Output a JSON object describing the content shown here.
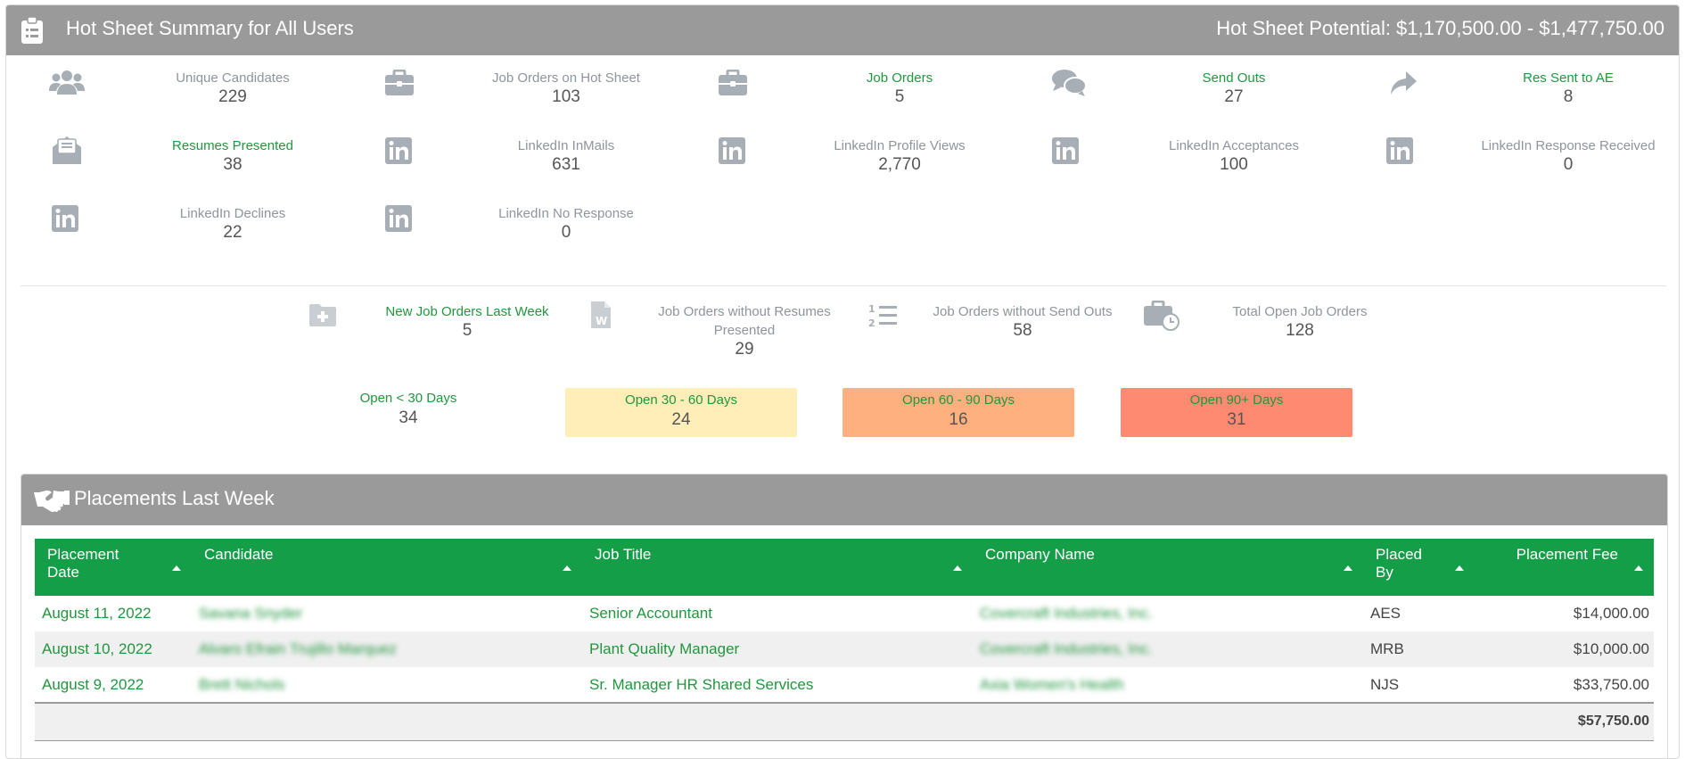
{
  "header": {
    "title": "Hot Sheet Summary for All Users",
    "potential": "Hot Sheet Potential: $1,170,500.00 - $1,477,750.00"
  },
  "stats": [
    {
      "label": "Unique Candidates",
      "value": "229",
      "icon": "users-icon"
    },
    {
      "label": "Job Orders on Hot Sheet",
      "value": "103",
      "icon": "briefcase-icon"
    },
    {
      "label": "Job Orders",
      "value": "5",
      "icon": "briefcase-icon"
    },
    {
      "label": "Send Outs",
      "value": "27",
      "icon": "comments-icon"
    },
    {
      "label": "Res Sent to AE",
      "value": "8",
      "icon": "share-arrow-icon"
    },
    {
      "label": "Resumes Presented",
      "value": "38",
      "icon": "envelope-open-icon"
    },
    {
      "label": "LinkedIn InMails",
      "value": "631",
      "icon": "linkedin-icon"
    },
    {
      "label": "LinkedIn Profile Views",
      "value": "2,770",
      "icon": "linkedin-icon"
    },
    {
      "label": "LinkedIn Acceptances",
      "value": "100",
      "icon": "linkedin-icon"
    },
    {
      "label": "LinkedIn Response Received",
      "value": "0",
      "icon": "linkedin-icon"
    },
    {
      "label": "LinkedIn Declines",
      "value": "22",
      "icon": "linkedin-icon"
    },
    {
      "label": "LinkedIn No Response",
      "value": "0",
      "icon": "linkedin-icon"
    }
  ],
  "job_stats": [
    {
      "label": "New Job Orders Last Week",
      "value": "5",
      "icon": "folder-plus-icon"
    },
    {
      "label": "Job Orders without Resumes Presented",
      "value": "29",
      "icon": "word-file-icon"
    },
    {
      "label": "Job Orders without Send Outs",
      "value": "58",
      "icon": "numbered-list-icon"
    },
    {
      "label": "Total Open Job Orders",
      "value": "128",
      "icon": "briefcase-clock-icon"
    }
  ],
  "age_boxes": [
    {
      "label": "Open < 30 Days",
      "value": "34",
      "color": "#ffffff"
    },
    {
      "label": "Open 30 - 60 Days",
      "value": "24",
      "color": "#ffeeb8"
    },
    {
      "label": "Open 60 - 90 Days",
      "value": "16",
      "color": "#ffb07e"
    },
    {
      "label": "Open 90+ Days",
      "value": "31",
      "color": "#ff8a72"
    }
  ],
  "placements": {
    "title": "Placements Last Week",
    "columns": [
      "Placement Date",
      "Candidate",
      "Job Title",
      "Company Name",
      "Placed By",
      "Placement Fee"
    ],
    "rows": [
      {
        "date": "August 11, 2022",
        "candidate": "Savana Snyder",
        "job": "Senior Accountant",
        "company": "Covercraft Industries, Inc.",
        "placed_by": "AES",
        "fee": "$14,000.00"
      },
      {
        "date": "August 10, 2022",
        "candidate": "Alvaro Efrain Trujillo Marquez",
        "job": "Plant Quality Manager",
        "company": "Covercraft Industries, Inc.",
        "placed_by": "MRB",
        "fee": "$10,000.00"
      },
      {
        "date": "August 9, 2022",
        "candidate": "Brett Nichols",
        "job": "Sr. Manager HR Shared Services",
        "company": "Axia Women's Health",
        "placed_by": "NJS",
        "fee": "$33,750.00"
      }
    ],
    "total": "$57,750.00"
  },
  "colors": {
    "header_gray": "#9a9a9a",
    "table_green": "#159e48",
    "label_green": "#22963f",
    "label_gray": "#8e959c"
  }
}
